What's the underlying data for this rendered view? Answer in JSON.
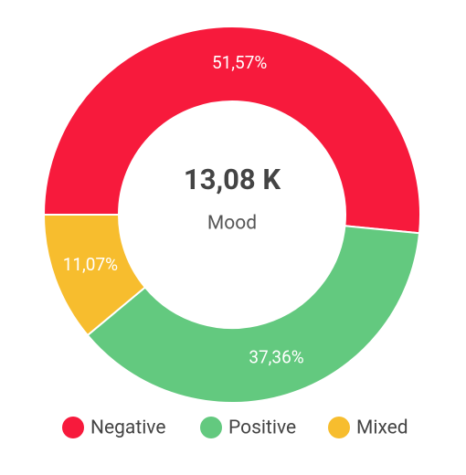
{
  "chart_data": {
    "type": "donut",
    "center_value": "13,08 K",
    "center_label": "Mood",
    "categories": [
      "Negative",
      "Positive",
      "Mixed"
    ],
    "values": [
      51.57,
      37.36,
      11.07
    ],
    "value_labels": [
      "51,57%",
      "37,36%",
      "11,07%"
    ],
    "colors": [
      "#f71a3c",
      "#63c97f",
      "#f7bd2e"
    ],
    "legend": "bottom"
  }
}
